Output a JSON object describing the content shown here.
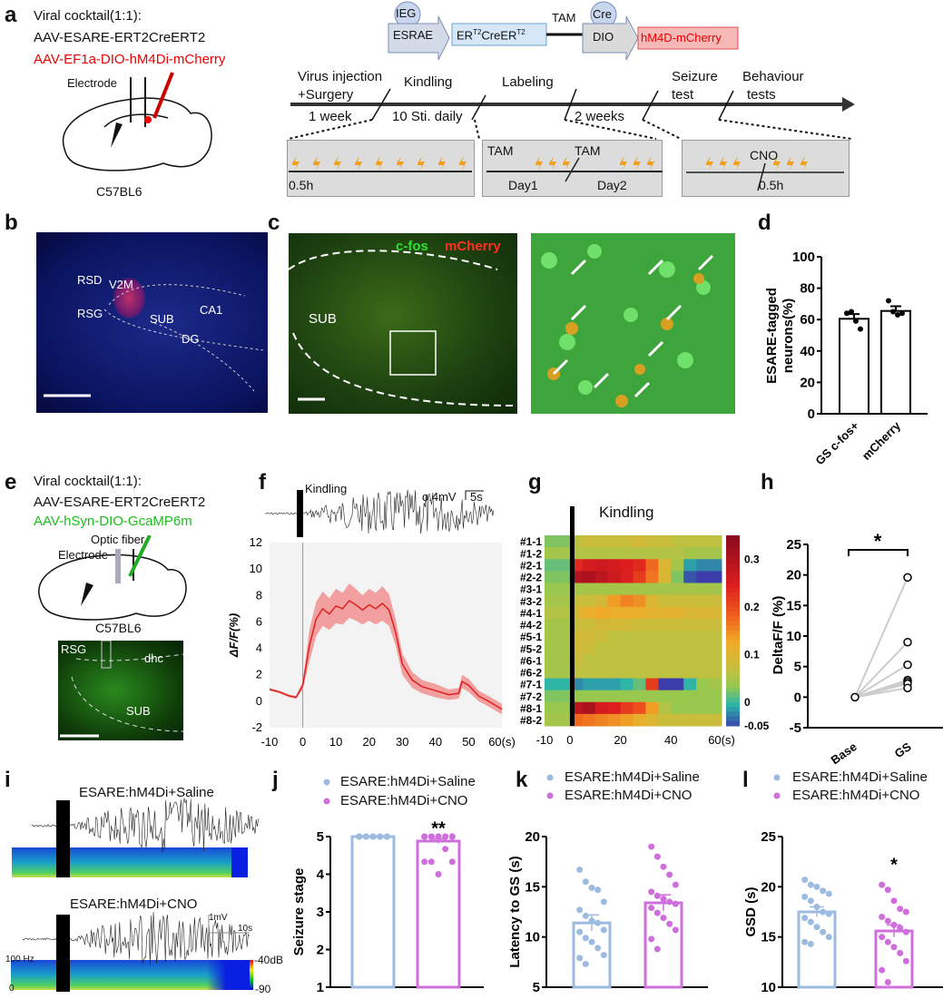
{
  "panel_labels": [
    "a",
    "b",
    "c",
    "d",
    "e",
    "f",
    "g",
    "h",
    "i",
    "j",
    "k",
    "l"
  ],
  "a": {
    "cocktail": "Viral cocktail(1:1):",
    "virus1": "AAV-ESARE-ERT2CreERT2",
    "virus2": "AAV-EF1a-DIO-hM4Di-mCherry",
    "electrode": "Electrode",
    "strain": "C57BL6",
    "construct": {
      "ieg": "IEG",
      "esrae": "ESRAE",
      "er_main": "ER",
      "er_sup1": "T2",
      "cre": "CreER",
      "er_sup2": "T2",
      "tam": "TAM",
      "cre_circle": "Cre",
      "dio": "DIO",
      "hm4d": "hM4D-mCherry"
    },
    "timeline": {
      "events": [
        "Virus injection",
        "+Surgery",
        "Kindling",
        "Labeling",
        "Seizure",
        "test",
        "Behaviour",
        "tests"
      ],
      "durations": [
        "1 week",
        "10 Sti. daily",
        "2 weeks"
      ],
      "box1": {
        "time": "0.5h"
      },
      "box2": {
        "tam1": "TAM",
        "tam2": "TAM",
        "day1": "Day1",
        "day2": "Day2"
      },
      "box3": {
        "cno": "CNO",
        "time": "0.5h"
      }
    },
    "colors": {
      "lightning": "#f0a020",
      "hm4d_box": "#f7b8b8"
    }
  },
  "b": {
    "regions": [
      "RSD",
      "V2M",
      "RSG",
      "SUB",
      "CA1",
      "DG"
    ]
  },
  "c": {
    "cfos": "c-fos",
    "mcherry": "mCherry",
    "sub": "SUB"
  },
  "e": {
    "cocktail": "Viral cocktail(1:1):",
    "virus1": "AAV-ESARE-ERT2CreERT2",
    "virus2": "AAV-hSyn-DIO-GcaMP6m",
    "fiber": "Optic fiber",
    "electrode": "Electrode",
    "strain": "C57BL6",
    "regions": [
      "RSG",
      "dhc",
      "SUB"
    ]
  },
  "f": {
    "kindling": "Kindling",
    "scale_v": "o.4mV",
    "scale_t": "5s"
  },
  "g": {
    "kindling": "Kindling"
  },
  "i": {
    "saline": "ESARE:hM4Di+Saline",
    "cno": "ESARE:hM4Di+CNO",
    "scale_v": "1mV",
    "scale_t": "10s",
    "freq": "100 Hz",
    "zero": "0",
    "db_top": "-40dB",
    "db_bot": "-90"
  },
  "chart_data": [
    {
      "id": "d",
      "type": "bar",
      "ylabel": "ESARE-tagged neurons(%)",
      "categories": [
        "GS c-fos+",
        "mCherry"
      ],
      "values": [
        60.5,
        65.5
      ],
      "sem": [
        3,
        3
      ],
      "points": [
        [
          64,
          65,
          59,
          54
        ],
        [
          72,
          65,
          63,
          64
        ]
      ],
      "ylim": [
        0,
        100
      ],
      "yticks": [
        0,
        20,
        40,
        60,
        80,
        100
      ]
    },
    {
      "id": "f",
      "type": "line",
      "xlabel": "",
      "ylabel": "ΔF/F(%)",
      "xlim": [
        -10,
        60
      ],
      "ylim": [
        -2,
        12
      ],
      "xticks": [
        "-10",
        "0",
        "10",
        "20",
        "30",
        "40",
        "50",
        "60(s)"
      ],
      "yticks": [
        -2,
        0,
        2,
        4,
        6,
        8,
        10,
        12
      ],
      "x": [
        -10,
        -7,
        -4,
        -2,
        0,
        2,
        4,
        6,
        8,
        10,
        12,
        14,
        16,
        18,
        20,
        22,
        24,
        26,
        28,
        30,
        33,
        36,
        40,
        44,
        47,
        48,
        50,
        53,
        56,
        60
      ],
      "mean": [
        0.9,
        0.7,
        0.4,
        0.3,
        1.2,
        4.2,
        6.2,
        7.0,
        6.6,
        7.2,
        7.0,
        7.6,
        7.3,
        6.9,
        7.3,
        7.0,
        7.4,
        6.9,
        5.2,
        2.8,
        1.6,
        1.1,
        0.8,
        0.5,
        0.6,
        1.5,
        1.2,
        0.4,
        0.0,
        -0.6
      ],
      "sem": [
        0.1,
        0.1,
        0.1,
        0.1,
        0.3,
        1.2,
        1.3,
        1.3,
        1.2,
        1.3,
        1.2,
        1.3,
        1.2,
        1.1,
        1.2,
        1.2,
        1.3,
        1.2,
        1.0,
        0.8,
        0.6,
        0.5,
        0.5,
        0.4,
        0.4,
        0.5,
        0.5,
        0.4,
        0.4,
        0.4
      ]
    },
    {
      "id": "g",
      "type": "heatmap",
      "rows": [
        "#1-1",
        "#1-2",
        "#2-1",
        "#2-2",
        "#3-1",
        "#3-2",
        "#4-1",
        "#4-2",
        "#5-1",
        "#5-2",
        "#6-1",
        "#6-2",
        "#7-1",
        "#7-2",
        "#8-1",
        "#8-2"
      ],
      "x_bins": [
        -10,
        -5,
        0,
        5,
        10,
        15,
        20,
        25,
        30,
        35,
        40,
        45,
        50,
        55
      ],
      "xticks": [
        "-10",
        "0",
        "20",
        "40",
        "60(s)"
      ],
      "clim": [
        -0.05,
        0.35
      ],
      "colorbar_ticks": [
        "0.3",
        "0.2",
        "0.1",
        "0",
        "-0.05"
      ],
      "values": [
        [
          0.03,
          0.03,
          0.07,
          0.08,
          0.08,
          0.08,
          0.08,
          0.09,
          0.08,
          0.08,
          0.07,
          0.07,
          0.07,
          0.07
        ],
        [
          0.05,
          0.05,
          0.06,
          0.06,
          0.06,
          0.06,
          0.06,
          0.06,
          0.06,
          0.06,
          0.06,
          0.05,
          0.05,
          0.05
        ],
        [
          0.02,
          0.02,
          0.24,
          0.26,
          0.27,
          0.26,
          0.25,
          0.24,
          0.18,
          0.1,
          0.05,
          -0.01,
          -0.02,
          -0.02
        ],
        [
          0.03,
          0.03,
          0.3,
          0.31,
          0.29,
          0.27,
          0.25,
          0.22,
          0.17,
          0.1,
          0.03,
          -0.04,
          -0.05,
          -0.05
        ],
        [
          0.04,
          0.04,
          0.05,
          0.05,
          0.05,
          0.05,
          0.05,
          0.05,
          0.05,
          0.05,
          0.05,
          0.05,
          0.05,
          0.05
        ],
        [
          0.05,
          0.05,
          0.08,
          0.08,
          0.09,
          0.14,
          0.16,
          0.15,
          0.1,
          0.08,
          0.08,
          0.08,
          0.08,
          0.08
        ],
        [
          0.06,
          0.06,
          0.1,
          0.12,
          0.13,
          0.12,
          0.12,
          0.12,
          0.11,
          0.11,
          0.11,
          0.1,
          0.1,
          0.1
        ],
        [
          0.05,
          0.05,
          0.08,
          0.08,
          0.09,
          0.09,
          0.09,
          0.08,
          0.08,
          0.08,
          0.08,
          0.08,
          0.08,
          0.08
        ],
        [
          0.05,
          0.05,
          0.09,
          0.09,
          0.08,
          0.07,
          0.07,
          0.07,
          0.07,
          0.07,
          0.07,
          0.07,
          0.07,
          0.07
        ],
        [
          0.05,
          0.05,
          0.09,
          0.08,
          0.07,
          0.07,
          0.07,
          0.07,
          0.07,
          0.07,
          0.07,
          0.07,
          0.07,
          0.07
        ],
        [
          0.05,
          0.05,
          0.08,
          0.07,
          0.07,
          0.07,
          0.07,
          0.07,
          0.07,
          0.07,
          0.07,
          0.07,
          0.07,
          0.07
        ],
        [
          0.05,
          0.05,
          0.07,
          0.07,
          0.07,
          0.07,
          0.07,
          0.07,
          0.07,
          0.07,
          0.07,
          0.07,
          0.07,
          0.07
        ],
        [
          0.0,
          0.0,
          -0.02,
          -0.01,
          -0.01,
          -0.01,
          0.0,
          0.02,
          0.22,
          -0.05,
          -0.05,
          0.0,
          0.04,
          0.05
        ],
        [
          0.03,
          0.03,
          0.04,
          0.04,
          0.04,
          0.04,
          0.04,
          0.04,
          0.04,
          0.04,
          0.04,
          0.04,
          0.04,
          0.04
        ],
        [
          0.04,
          0.04,
          0.29,
          0.31,
          0.26,
          0.25,
          0.22,
          0.2,
          0.14,
          0.06,
          0.04,
          0.04,
          0.04,
          0.04
        ],
        [
          0.05,
          0.05,
          0.18,
          0.17,
          0.16,
          0.15,
          0.14,
          0.12,
          0.1,
          0.08,
          0.08,
          0.08,
          0.08,
          0.08
        ]
      ]
    },
    {
      "id": "h",
      "type": "scatter",
      "ylabel": "DeltaF/F (%)",
      "categories": [
        "Base",
        "GS"
      ],
      "ylim": [
        -5,
        25
      ],
      "yticks": [
        -5,
        0,
        5,
        10,
        15,
        20,
        25
      ],
      "base": [
        0,
        0,
        0,
        0,
        0,
        0,
        0
      ],
      "gs": [
        19.6,
        9.0,
        5.3,
        2.8,
        2.5,
        2.2,
        1.5
      ],
      "significance": "*"
    },
    {
      "id": "j",
      "type": "bar",
      "ylabel": "Seizure stage",
      "legend": [
        "ESARE:hM4Di+Saline",
        "ESARE:hM4Di+CNO"
      ],
      "categories": [
        "Saline",
        "CNO"
      ],
      "values": [
        5,
        4.88
      ],
      "sem": [
        0,
        0.06
      ],
      "points": [
        [
          5,
          5,
          5,
          5,
          5,
          5,
          5,
          5,
          5,
          5,
          5,
          5,
          5,
          5,
          5,
          5,
          5,
          5
        ],
        [
          5,
          5,
          5,
          5,
          5,
          5,
          5,
          5,
          5,
          5,
          5,
          5,
          5,
          4.67,
          4.33,
          4.33,
          4.33,
          4.0
        ]
      ],
      "ylim": [
        1,
        5
      ],
      "yticks": [
        1,
        2,
        3,
        4,
        5
      ],
      "significance": "**"
    },
    {
      "id": "k",
      "type": "bar",
      "ylabel": "Latency to GS (s)",
      "legend": [
        "ESARE:hM4Di+Saline",
        "ESARE:hM4Di+CNO"
      ],
      "categories": [
        "Saline",
        "CNO"
      ],
      "values": [
        11.4,
        13.4
      ],
      "sem": [
        0.8,
        0.8
      ],
      "points": [
        [
          16.7,
          15.5,
          14.9,
          14.7,
          13.5,
          12.7,
          12.1,
          11.6,
          11.4,
          10.7,
          10.5,
          9.9,
          9.5,
          8.9,
          8.2,
          7.9,
          7.3
        ],
        [
          19.0,
          18.0,
          17.0,
          16.2,
          15.2,
          14.5,
          14.1,
          13.8,
          13.5,
          13.3,
          12.9,
          12.4,
          11.9,
          11.3,
          10.7,
          9.8,
          8.8
        ]
      ],
      "ylim": [
        5,
        20
      ],
      "yticks": [
        5,
        10,
        15,
        20
      ],
      "significance": ""
    },
    {
      "id": "l",
      "type": "bar",
      "ylabel": "GSD (s)",
      "legend": [
        "ESARE:hM4Di+Saline",
        "ESARE:hM4Di+CNO"
      ],
      "categories": [
        "Saline",
        "CNO"
      ],
      "values": [
        17.5,
        15.6
      ],
      "sem": [
        0.5,
        0.6
      ],
      "points": [
        [
          20.7,
          20.2,
          20.0,
          19.6,
          19.3,
          19.0,
          18.6,
          18.0,
          17.5,
          17.3,
          16.9,
          16.5,
          16.0,
          15.5,
          15.0,
          14.5,
          14.3
        ],
        [
          20.2,
          19.7,
          18.6,
          17.8,
          17.5,
          17.0,
          16.6,
          16.2,
          15.9,
          15.5,
          15.0,
          14.5,
          14.0,
          13.4,
          12.6,
          11.7,
          10.5
        ]
      ],
      "ylim": [
        10,
        25
      ],
      "yticks": [
        10,
        15,
        20,
        25
      ],
      "significance": "*"
    }
  ],
  "colors": {
    "saline": "#9dbbe0",
    "cno": "#cf6fdc",
    "trace": "#e02020",
    "trace_band": "#f08a8a"
  }
}
